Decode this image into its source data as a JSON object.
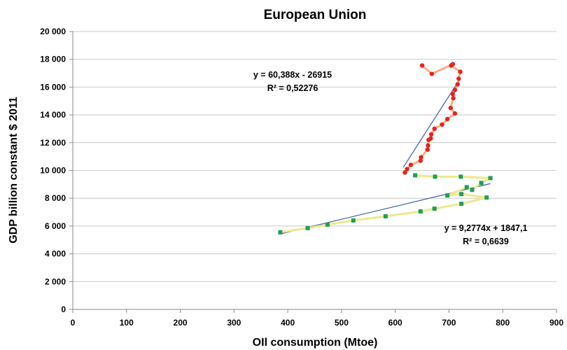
{
  "chart_data": {
    "type": "scatter",
    "title": "European Union",
    "xlabel": "OIl consumption (Mtoe)",
    "ylabel": "GDP billion constant $ 2011",
    "xlim": [
      0,
      900
    ],
    "ylim": [
      0,
      20000
    ],
    "x_ticks": [
      0,
      100,
      200,
      300,
      400,
      500,
      600,
      700,
      800,
      900
    ],
    "x_tick_labels": [
      "0",
      "100",
      "200",
      "300",
      "400",
      "500",
      "600",
      "700",
      "800",
      "900"
    ],
    "y_ticks": [
      0,
      2000,
      4000,
      6000,
      8000,
      10000,
      12000,
      14000,
      16000,
      18000,
      20000
    ],
    "y_tick_labels": [
      "0",
      "2 000",
      "4 000",
      "6 000",
      "8 000",
      "10 000",
      "12 000",
      "14 000",
      "16 000",
      "18 000",
      "20 000"
    ],
    "grid": "horizontal",
    "series": [
      {
        "color": "#1f9e5a",
        "line_color": "#eee88a",
        "marker": "square",
        "points": [
          [
            386,
            5550
          ],
          [
            437,
            5850
          ],
          [
            474,
            6100
          ],
          [
            522,
            6400
          ],
          [
            582,
            6700
          ],
          [
            647,
            7050
          ],
          [
            673,
            7250
          ],
          [
            723,
            7600
          ],
          [
            770,
            8050
          ],
          [
            723,
            8300
          ],
          [
            697,
            8200
          ],
          [
            733,
            8800
          ],
          [
            743,
            8600
          ],
          [
            760,
            9100
          ],
          [
            777,
            9450
          ],
          [
            722,
            9550
          ],
          [
            674,
            9550
          ],
          [
            637,
            9650
          ]
        ]
      },
      {
        "color": "#e8231d",
        "line_color": "#f4b183",
        "marker": "circle",
        "points": [
          [
            618,
            9850
          ],
          [
            622,
            10100
          ],
          [
            629,
            10400
          ],
          [
            647,
            10700
          ],
          [
            648,
            10950
          ],
          [
            660,
            11500
          ],
          [
            661,
            11800
          ],
          [
            662,
            12200
          ],
          [
            666,
            12300
          ],
          [
            667,
            12600
          ],
          [
            673,
            13000
          ],
          [
            687,
            13300
          ],
          [
            697,
            13700
          ],
          [
            711,
            14100
          ],
          [
            703,
            14500
          ],
          [
            708,
            15200
          ],
          [
            707,
            15500
          ],
          [
            711,
            15800
          ],
          [
            716,
            16200
          ],
          [
            718,
            16600
          ],
          [
            721,
            17100
          ],
          [
            704,
            17550
          ],
          [
            707,
            17650
          ],
          [
            668,
            16950
          ],
          [
            650,
            17550
          ]
        ]
      }
    ],
    "trendlines": [
      {
        "color": "#3a5fa0",
        "x": [
          386,
          777
        ],
        "equation": "y = 9,2774x + 1847,1",
        "r2": "R² = 0,6639"
      },
      {
        "color": "#3a5fa0",
        "x": [
          615,
          721
        ],
        "equation": "y = 60,388x - 26915",
        "r2": "R² = 0,52276"
      }
    ],
    "trendline_coefficients": [
      {
        "slope": 9.2774,
        "intercept": 1847.1
      },
      {
        "slope": 60.388,
        "intercept": -26915
      }
    ]
  }
}
